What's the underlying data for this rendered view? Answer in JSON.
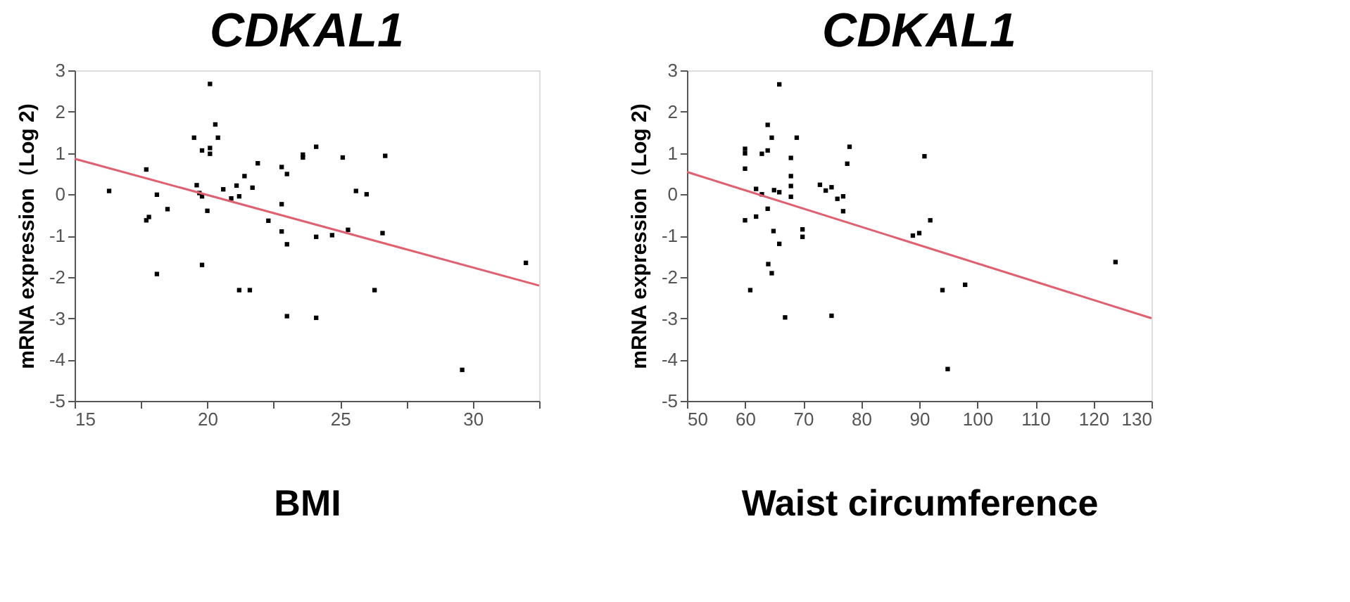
{
  "chart_data": [
    {
      "type": "scatter",
      "title": "CDKAL1",
      "xlabel": "BMI",
      "ylabel": "mRNA expression（Log 2)",
      "xlim": [
        15,
        32.5
      ],
      "xticks": [
        15,
        {
          "value": 17.5,
          "label": null
        },
        20,
        {
          "value": 22.5,
          "label": null
        },
        25,
        {
          "value": 27.5,
          "label": null
        },
        30,
        {
          "value": 32.5,
          "label": null
        }
      ],
      "ylim": [
        -5,
        3
      ],
      "yticks": [
        -5,
        -4,
        -3,
        -2,
        -1,
        0,
        1,
        2,
        3
      ],
      "grid": false,
      "series": [
        {
          "type": "scatter",
          "color": "#000000",
          "marker": "square",
          "x": [
            16.3,
            17.7,
            17.7,
            17.8,
            18.1,
            18.1,
            18.5,
            19.5,
            19.6,
            19.7,
            19.8,
            19.8,
            19.8,
            20.0,
            20.1,
            20.1,
            20.1,
            20.3,
            20.4,
            20.6,
            20.9,
            21.1,
            21.2,
            21.2,
            21.4,
            21.6,
            21.7,
            21.9,
            22.3,
            22.8,
            22.8,
            22.8,
            23.0,
            23.0,
            23.0,
            23.6,
            23.6,
            24.1,
            24.1,
            24.1,
            24.7,
            25.1,
            25.3,
            25.6,
            26.0,
            26.3,
            26.6,
            26.7,
            29.6,
            32.0
          ],
          "values": [
            0.08,
            0.6,
            -0.63,
            -0.55,
            -0.01,
            -1.93,
            -0.36,
            1.37,
            0.22,
            0.03,
            -0.05,
            1.06,
            -1.71,
            -0.4,
            1.12,
            0.98,
            2.67,
            1.69,
            1.37,
            0.12,
            -0.1,
            0.21,
            -0.05,
            -2.32,
            0.44,
            -2.32,
            0.16,
            0.75,
            -0.64,
            0.66,
            -0.24,
            -0.9,
            0.49,
            -1.21,
            -2.95,
            0.96,
            0.89,
            -2.99,
            1.15,
            -1.03,
            -0.99,
            0.89,
            -0.86,
            0.08,
            0.0,
            -2.32,
            -0.94,
            0.93,
            -4.25,
            -1.66
          ]
        },
        {
          "type": "line",
          "color": "#e06070",
          "marker": "none",
          "line_style": "solid",
          "x": [
            15,
            32.5
          ],
          "values": [
            0.86,
            -2.21
          ]
        }
      ]
    },
    {
      "type": "scatter",
      "title": "CDKAL1",
      "xlabel": "Waist circumference",
      "ylabel": "mRNA expression（Log 2)",
      "xlim": [
        50,
        130
      ],
      "xticks": [
        50,
        60,
        70,
        80,
        90,
        100,
        110,
        120,
        130
      ],
      "ylim": [
        -5,
        3
      ],
      "yticks": [
        -5,
        -4,
        -3,
        -2,
        -1,
        0,
        1,
        2,
        3
      ],
      "grid": false,
      "series": [
        {
          "type": "scatter",
          "color": "#000000",
          "marker": "square",
          "x": [
            60.0,
            60.0,
            60.0,
            60.0,
            60.9,
            61.9,
            61.9,
            62.9,
            62.9,
            63.9,
            63.9,
            63.9,
            64.0,
            64.6,
            64.6,
            64.9,
            65.0,
            65.9,
            65.9,
            65.9,
            66.9,
            67.9,
            67.9,
            67.9,
            67.9,
            68.9,
            69.9,
            69.9,
            72.9,
            73.9,
            74.9,
            74.9,
            75.9,
            76.9,
            76.9,
            77.6,
            78.0,
            88.9,
            90.0,
            90.9,
            91.9,
            94.0,
            94.9,
            97.9,
            123.8
          ],
          "values": [
            1.1,
            0.99,
            0.62,
            -0.63,
            -2.32,
            0.13,
            -0.54,
            0.98,
            0.0,
            1.68,
            1.06,
            -0.35,
            -1.69,
            1.37,
            -1.91,
            -0.89,
            0.1,
            2.66,
            0.05,
            -1.2,
            -2.98,
            0.88,
            0.44,
            0.2,
            -0.06,
            1.37,
            -0.85,
            -1.03,
            0.23,
            0.09,
            0.17,
            -2.94,
            -0.11,
            -0.05,
            -0.41,
            0.74,
            1.15,
            -1.0,
            -0.94,
            0.92,
            -0.63,
            -2.32,
            -4.23,
            -2.19,
            -1.64
          ]
        },
        {
          "type": "line",
          "color": "#e06070",
          "marker": "none",
          "line_style": "solid",
          "x": [
            50,
            130
          ],
          "values": [
            0.54,
            -3.0
          ]
        }
      ]
    }
  ]
}
